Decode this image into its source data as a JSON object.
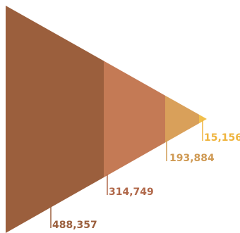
{
  "chart_data": {
    "type": "funnel",
    "orientation": "horizontal",
    "title": "",
    "xlabel": "",
    "ylabel": "",
    "legend": "none",
    "grid": false,
    "segments": [
      {
        "value": 488357,
        "label": "488,357",
        "color": "#9b5f3d",
        "label_color": "#9b5f3d"
      },
      {
        "value": 314749,
        "label": "314,749",
        "color": "#c47a55",
        "label_color": "#b0684a"
      },
      {
        "value": 193884,
        "label": "193,884",
        "color": "#d9a05a",
        "label_color": "#cf9a54"
      },
      {
        "value": 15156,
        "label": "15,156",
        "color": "#f1bf4c",
        "label_color": "#efb43d"
      }
    ]
  }
}
